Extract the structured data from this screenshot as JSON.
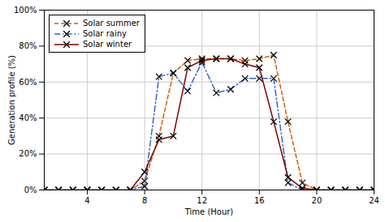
{
  "chart_data": {
    "type": "line",
    "xlabel": "Time (Hour)",
    "ylabel": "Generation profile (%)",
    "x": [
      1,
      2,
      3,
      4,
      5,
      6,
      7,
      8,
      9,
      10,
      11,
      12,
      13,
      14,
      15,
      16,
      17,
      18,
      19,
      20,
      21,
      22,
      23,
      24
    ],
    "series": [
      {
        "name": "Solar summer",
        "color": "#cc6600",
        "line_style": "dashed",
        "values": [
          0,
          0,
          0,
          0,
          0,
          0,
          0,
          0.05,
          0.3,
          0.65,
          0.72,
          0.73,
          0.73,
          0.73,
          0.72,
          0.73,
          0.75,
          0.38,
          0.04,
          0,
          0,
          0,
          0,
          0
        ]
      },
      {
        "name": "Solar rainy",
        "color": "#3366cc",
        "line_style": "dashdot",
        "values": [
          0,
          0,
          0,
          0,
          0,
          0,
          0,
          0.02,
          0.63,
          0.65,
          0.55,
          0.71,
          0.54,
          0.56,
          0.62,
          0.62,
          0.62,
          0.04,
          0,
          0,
          0,
          0,
          0,
          0
        ]
      },
      {
        "name": "Solar winter",
        "color": "#800000",
        "line_style": "solid",
        "values": [
          0,
          0,
          0,
          0,
          0,
          0,
          0,
          0.1,
          0.28,
          0.3,
          0.68,
          0.72,
          0.73,
          0.73,
          0.7,
          0.68,
          0.38,
          0.07,
          0.01,
          0,
          0,
          0,
          0,
          0
        ]
      }
    ],
    "xlim": [
      1,
      24
    ],
    "ylim": [
      0,
      1.0
    ],
    "xticks": [
      4,
      8,
      12,
      16,
      20,
      24
    ],
    "yticks": [
      {
        "value": 0.0,
        "label": "0%"
      },
      {
        "value": 0.2,
        "label": "20%"
      },
      {
        "value": 0.4,
        "label": "40%"
      },
      {
        "value": 0.6,
        "label": "60%"
      },
      {
        "value": 0.8,
        "label": "80%"
      },
      {
        "value": 1.0,
        "label": "100%"
      }
    ],
    "grid": true,
    "legend": "upper left",
    "marker": "x"
  }
}
